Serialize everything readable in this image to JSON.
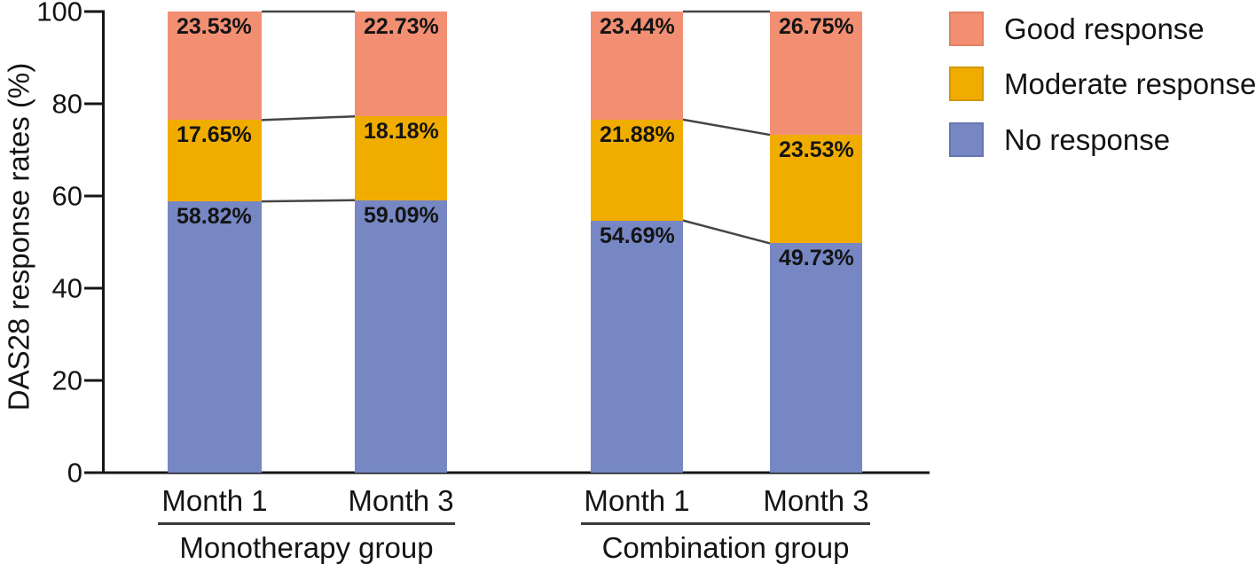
{
  "chart_data": {
    "type": "bar",
    "variant": "stacked-percentage",
    "title": "",
    "ylabel": "DAS28 response rates (%)",
    "xlabel": "",
    "ylim": [
      0,
      100
    ],
    "yticks": [
      "0",
      "20",
      "40",
      "60",
      "80",
      "100"
    ],
    "grid": false,
    "legend_position": "top-right",
    "series_bottom_to_top": [
      "No response",
      "Moderate response",
      "Good response"
    ],
    "series_colors": {
      "No response": "#7787c4",
      "Moderate response": "#f0ad00",
      "Good response": "#f28f73"
    },
    "legend": [
      {
        "label": "Good response",
        "color": "#f28f73",
        "border": "#e08062"
      },
      {
        "label": "Moderate response",
        "color": "#f0ad00",
        "border": "#d69600"
      },
      {
        "label": "No response",
        "color": "#7787c4",
        "border": "#6675ad"
      }
    ],
    "groups": [
      {
        "label": "Monotherapy group",
        "bars": [
          {
            "label": "Month 1",
            "values": {
              "No response": 58.82,
              "Moderate response": 17.65,
              "Good response": 23.53
            },
            "value_labels": {
              "No response": "58.82%",
              "Moderate response": "17.65%",
              "Good response": "23.53%"
            }
          },
          {
            "label": "Month 3",
            "values": {
              "No response": 59.09,
              "Moderate response": 18.18,
              "Good response": 22.73
            },
            "value_labels": {
              "No response": "59.09%",
              "Moderate response": "18.18%",
              "Good response": "22.73%"
            }
          }
        ]
      },
      {
        "label": "Combination group",
        "bars": [
          {
            "label": "Month 1",
            "values": {
              "No response": 54.69,
              "Moderate response": 21.88,
              "Good response": 23.44
            },
            "value_labels": {
              "No response": "54.69%",
              "Moderate response": "21.88%",
              "Good response": "23.44%"
            }
          },
          {
            "label": "Month 3",
            "values": {
              "No response": 49.73,
              "Moderate response": 23.53,
              "Good response": 26.75
            },
            "value_labels": {
              "No response": "49.73%",
              "Moderate response": "23.53%",
              "Good response": "26.75%"
            }
          }
        ]
      }
    ],
    "connectors_note": "lines join stacked-segment boundaries of adjacent bars within each group, including the 100% top boundary"
  },
  "colors": {
    "axis": "#161616",
    "connector": "#454545",
    "text": "#141414"
  }
}
